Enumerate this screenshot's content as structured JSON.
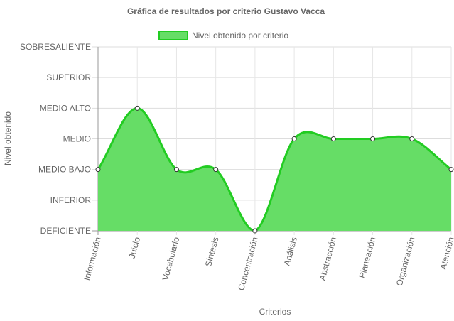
{
  "chart_data": {
    "type": "area",
    "title": "Gráfica de resultados por criterio Gustavo Vacca",
    "xlabel": "Criterios",
    "ylabel": "Nivel obtenido",
    "categories": [
      "Información",
      "Juicio",
      "Vocabulario",
      "Síntesis",
      "Concentración",
      "Análisis",
      "Abstracción",
      "Planeación",
      "Organización",
      "Atención"
    ],
    "y_levels": [
      "DEFICIENTE",
      "INFERIOR",
      "MEDIO BAJO",
      "MEDIO",
      "MEDIO ALTO",
      "SUPERIOR",
      "SOBRESALIENTE"
    ],
    "ylim": [
      0,
      6
    ],
    "series": [
      {
        "name": "Nivel obtenido por criterio",
        "values": [
          2,
          4,
          2,
          2,
          0,
          3,
          3,
          3,
          3,
          2
        ],
        "fill_color": "#66dd66",
        "line_color": "#22cc22"
      }
    ],
    "grid": true,
    "legend_position": "top-center"
  }
}
